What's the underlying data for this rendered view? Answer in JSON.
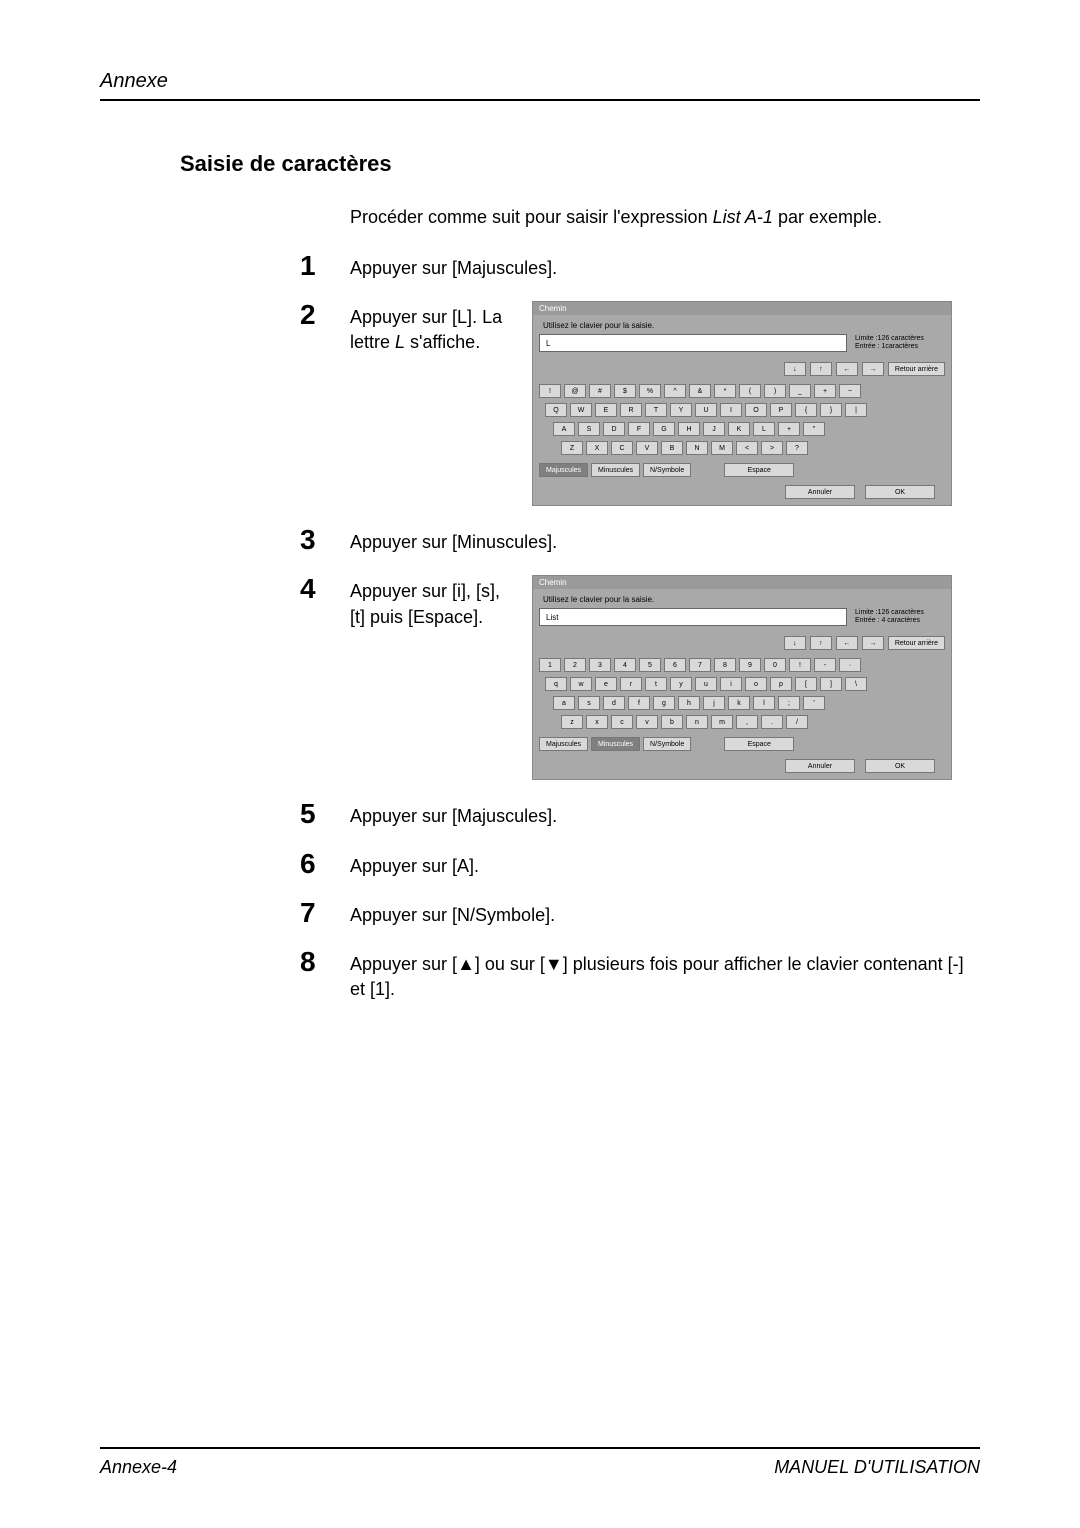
{
  "header": {
    "running_title": "Annexe"
  },
  "section": {
    "title": "Saisie de caractères"
  },
  "intro": {
    "prefix": "Procéder comme suit pour saisir l'expression ",
    "italic": "List A-1",
    "suffix": " par exemple."
  },
  "steps": {
    "s1": {
      "num": "1",
      "text": "Appuyer sur [Majuscules]."
    },
    "s2": {
      "num": "2",
      "text_a": "Appuyer sur [L]. La lettre ",
      "italic": "L",
      "text_b": " s'affiche."
    },
    "s3": {
      "num": "3",
      "text": "Appuyer sur [Minuscules]."
    },
    "s4": {
      "num": "4",
      "text": "Appuyer sur [i], [s], [t] puis [Espace]."
    },
    "s5": {
      "num": "5",
      "text": "Appuyer sur [Majuscules]."
    },
    "s6": {
      "num": "6",
      "text": "Appuyer sur [A]."
    },
    "s7": {
      "num": "7",
      "text": "Appuyer sur [N/Symbole]."
    },
    "s8": {
      "num": "8",
      "text_a": "Appuyer sur [",
      "tri_up": "▲",
      "text_b": "] ou sur [",
      "tri_down": "▼",
      "text_c": "] plusieurs fois pour afficher le clavier contenant [-] et [1]."
    }
  },
  "kbd_common": {
    "title": "Chemin",
    "instruction": "Utilisez le clavier pour la saisie.",
    "limit_label": "Limite :126 caractères",
    "arrows": {
      "down": "↓",
      "up": "↑",
      "left": "←",
      "right": "→"
    },
    "back": "Retour arrière",
    "modes": {
      "maj": "Majuscules",
      "min": "Minuscules",
      "sym": "N/Symbole"
    },
    "space": "Espace",
    "cancel": "Annuler",
    "ok": "OK"
  },
  "kbd1": {
    "value": "L",
    "entered_label": "Entrée : 1caractères",
    "active_mode": "maj",
    "rows": [
      [
        "!",
        "@",
        "#",
        "$",
        "%",
        "^",
        "&",
        "*",
        "(",
        ")",
        "_",
        "+",
        "~"
      ],
      [
        "Q",
        "W",
        "E",
        "R",
        "T",
        "Y",
        "U",
        "I",
        "O",
        "P",
        "{",
        "}",
        "|"
      ],
      [
        "A",
        "S",
        "D",
        "F",
        "G",
        "H",
        "J",
        "K",
        "L",
        "+",
        "\""
      ],
      [
        "Z",
        "X",
        "C",
        "V",
        "B",
        "N",
        "M",
        "<",
        ">",
        "?"
      ]
    ]
  },
  "kbd2": {
    "value": "List",
    "entered_label": "Entrée : 4 caractères",
    "active_mode": "min",
    "rows": [
      [
        "1",
        "2",
        "3",
        "4",
        "5",
        "6",
        "7",
        "8",
        "9",
        "0",
        "!",
        "-",
        "·"
      ],
      [
        "q",
        "w",
        "e",
        "r",
        "t",
        "y",
        "u",
        "i",
        "o",
        "p",
        "[",
        "]",
        "\\"
      ],
      [
        "a",
        "s",
        "d",
        "f",
        "g",
        "h",
        "j",
        "k",
        "l",
        ";",
        "'"
      ],
      [
        "z",
        "x",
        "c",
        "v",
        "b",
        "n",
        "m",
        ",",
        ".",
        "/"
      ]
    ]
  },
  "footer": {
    "left": "Annexe-4",
    "right": "MANUEL D'UTILISATION"
  }
}
